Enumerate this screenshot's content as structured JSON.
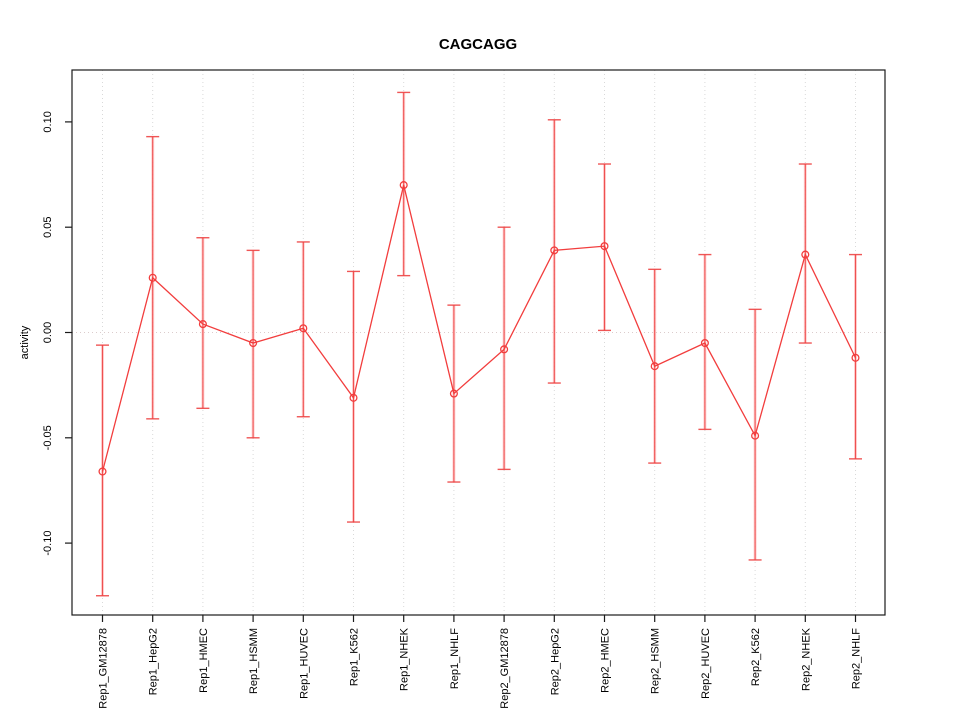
{
  "chart_data": {
    "type": "line",
    "title": "CAGCAGG",
    "xlabel": "",
    "ylabel": "activity",
    "grid": "vertical-dotted-at-each-category, dotted-zero-line",
    "legend": "none",
    "ylim": [
      -0.134,
      0.125
    ],
    "yticks": [
      {
        "value": 0.1,
        "label": "0.10"
      },
      {
        "value": 0.05,
        "label": "0.05"
      },
      {
        "value": 0.0,
        "label": "0.00"
      },
      {
        "value": -0.05,
        "label": "-0.05"
      },
      {
        "value": -0.1,
        "label": "-0.10"
      }
    ],
    "categories": [
      "Rep1_GM12878",
      "Rep1_HepG2",
      "Rep1_HMEC",
      "Rep1_HSMM",
      "Rep1_HUVEC",
      "Rep1_K562",
      "Rep1_NHEK",
      "Rep1_NHLF",
      "Rep2_GM12878",
      "Rep2_HepG2",
      "Rep2_HMEC",
      "Rep2_HSMM",
      "Rep2_HUVEC",
      "Rep2_K562",
      "Rep2_NHEK",
      "Rep2_NHLF"
    ],
    "series": [
      {
        "name": "activity",
        "marker": "open-circle",
        "values": [
          -0.066,
          0.026,
          0.004,
          -0.005,
          0.002,
          -0.031,
          0.07,
          -0.029,
          -0.008,
          0.039,
          0.041,
          -0.016,
          -0.005,
          -0.049,
          0.037,
          -0.012
        ],
        "err_low": [
          -0.125,
          -0.041,
          -0.036,
          -0.05,
          -0.04,
          -0.09,
          0.027,
          -0.071,
          -0.065,
          -0.024,
          0.001,
          -0.062,
          -0.046,
          -0.108,
          -0.005,
          -0.06
        ],
        "err_high": [
          -0.006,
          0.093,
          0.045,
          0.039,
          0.043,
          0.029,
          0.114,
          0.013,
          0.05,
          0.101,
          0.08,
          0.03,
          0.037,
          0.011,
          0.08,
          0.037
        ]
      }
    ],
    "colors": {
      "series_line": "#f23d3d",
      "error_bar_core": "#ee4444",
      "error_bar_halo": "#ffb0b0",
      "marker_stroke": "#f23d3d",
      "grid": "#d9d9d9",
      "zero_line": "#dccccc",
      "axis": "#1a1a1a"
    }
  }
}
